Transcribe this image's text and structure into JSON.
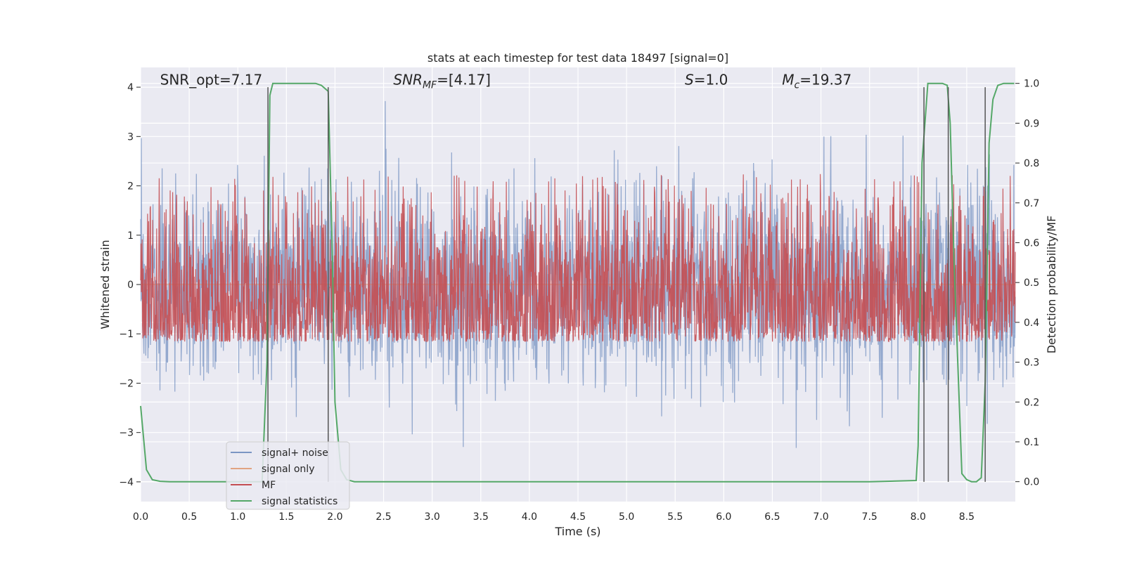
{
  "chart_data": {
    "type": "line",
    "title": "stats at each timestep for test data 18497 [signal=0]",
    "xlabel": "Time (s)",
    "ylabel_left": "Whitened strain",
    "ylabel_right": "Detection probability/MF",
    "xlim": [
      0.0,
      9.0
    ],
    "ylim_left": [
      -4.4,
      4.4
    ],
    "ylim_right": [
      -0.05,
      1.04
    ],
    "x_ticks": [
      0.0,
      0.5,
      1.0,
      1.5,
      2.0,
      2.5,
      3.0,
      3.5,
      4.0,
      4.5,
      5.0,
      5.5,
      6.0,
      6.5,
      7.0,
      7.5,
      8.0,
      8.5
    ],
    "x_tick_labels": [
      "0.0",
      "0.5",
      "1.0",
      "1.5",
      "2.0",
      "2.5",
      "3.0",
      "3.5",
      "4.0",
      "4.5",
      "5.0",
      "5.5",
      "6.0",
      "6.5",
      "7.0",
      "7.5",
      "8.0",
      "8.5"
    ],
    "y_left_ticks": [
      4,
      3,
      2,
      1,
      0,
      -1,
      -2,
      -3,
      -4
    ],
    "y_left_tick_labels": [
      "4",
      "3",
      "2",
      "1",
      "0",
      "−1",
      "−2",
      "−3",
      "−4"
    ],
    "y_right_ticks": [
      1.0,
      0.9,
      0.8,
      0.7,
      0.6,
      0.5,
      0.4,
      0.3,
      0.2,
      0.1,
      0.0
    ],
    "y_right_tick_labels": [
      "1.0",
      "0.9",
      "0.8",
      "0.7",
      "0.6",
      "0.5",
      "0.4",
      "0.3",
      "0.2",
      "0.1",
      "0.0"
    ],
    "grid": true,
    "annotations": [
      {
        "id": "snr-opt",
        "text": "SNR_opt=7.17",
        "x": 0.2,
        "y": 4.05
      },
      {
        "id": "snr-mf",
        "text": "SNR_MF=[4.17]",
        "x": 2.6,
        "y": 4.05
      },
      {
        "id": "s-value",
        "text": "S=1.0",
        "x": 5.6,
        "y": 4.05
      },
      {
        "id": "mc-value",
        "text": "M_c=19.37",
        "x": 6.6,
        "y": 4.05
      }
    ],
    "markers_x": [
      1.31,
      1.93,
      8.06,
      8.31,
      8.69
    ],
    "marker_range": [
      -4.0,
      4.0
    ],
    "series": [
      {
        "name": "signal+ noise",
        "color": "#4c72b0",
        "axis": "left",
        "style": "noise",
        "sigma": 1.0,
        "clip": 4.0
      },
      {
        "name": "signal only",
        "color": "#dd8452",
        "axis": "left",
        "style": "flat",
        "value": 0.0
      },
      {
        "name": "MF",
        "color": "#c44e52",
        "axis": "left",
        "style": "band",
        "low": 0.05,
        "high": 0.95
      },
      {
        "name": "signal statistics",
        "color": "#55a868",
        "axis": "right",
        "x": [
          0.0,
          0.06,
          0.12,
          0.2,
          0.3,
          0.5,
          0.8,
          1.0,
          1.2,
          1.25,
          1.3,
          1.33,
          1.36,
          1.4,
          1.5,
          1.7,
          1.8,
          1.86,
          1.93,
          1.97,
          2.0,
          2.06,
          2.12,
          2.2,
          3.0,
          3.5,
          4.0,
          5.0,
          6.0,
          7.0,
          7.5,
          7.98,
          8.0,
          8.04,
          8.1,
          8.15,
          8.2,
          8.25,
          8.3,
          8.33,
          8.37,
          8.45,
          8.5,
          8.55,
          8.6,
          8.65,
          8.69,
          8.73,
          8.77,
          8.82,
          8.88,
          8.93,
          8.99
        ],
        "y": [
          0.19,
          0.03,
          0.005,
          0.001,
          0.0,
          0.0,
          0.0,
          0.0,
          0.0,
          0.0,
          0.3,
          0.97,
          1.0,
          1.0,
          1.0,
          1.0,
          1.0,
          0.995,
          0.98,
          0.6,
          0.2,
          0.03,
          0.005,
          0.0,
          0.0,
          0.0,
          0.0,
          0.0,
          0.0,
          0.0,
          0.0,
          0.003,
          0.09,
          0.8,
          1.0,
          1.0,
          1.0,
          1.0,
          0.995,
          0.9,
          0.55,
          0.02,
          0.005,
          0.0,
          0.0,
          0.01,
          0.25,
          0.85,
          0.96,
          0.995,
          1.0,
          1.0,
          1.0
        ]
      }
    ],
    "legend": {
      "location": "lower-left",
      "entries": [
        {
          "label": "signal+ noise",
          "color": "#4c72b0"
        },
        {
          "label": "signal only",
          "color": "#dd8452"
        },
        {
          "label": "MF",
          "color": "#c44e52"
        },
        {
          "label": "signal statistics",
          "color": "#55a868"
        }
      ]
    }
  }
}
